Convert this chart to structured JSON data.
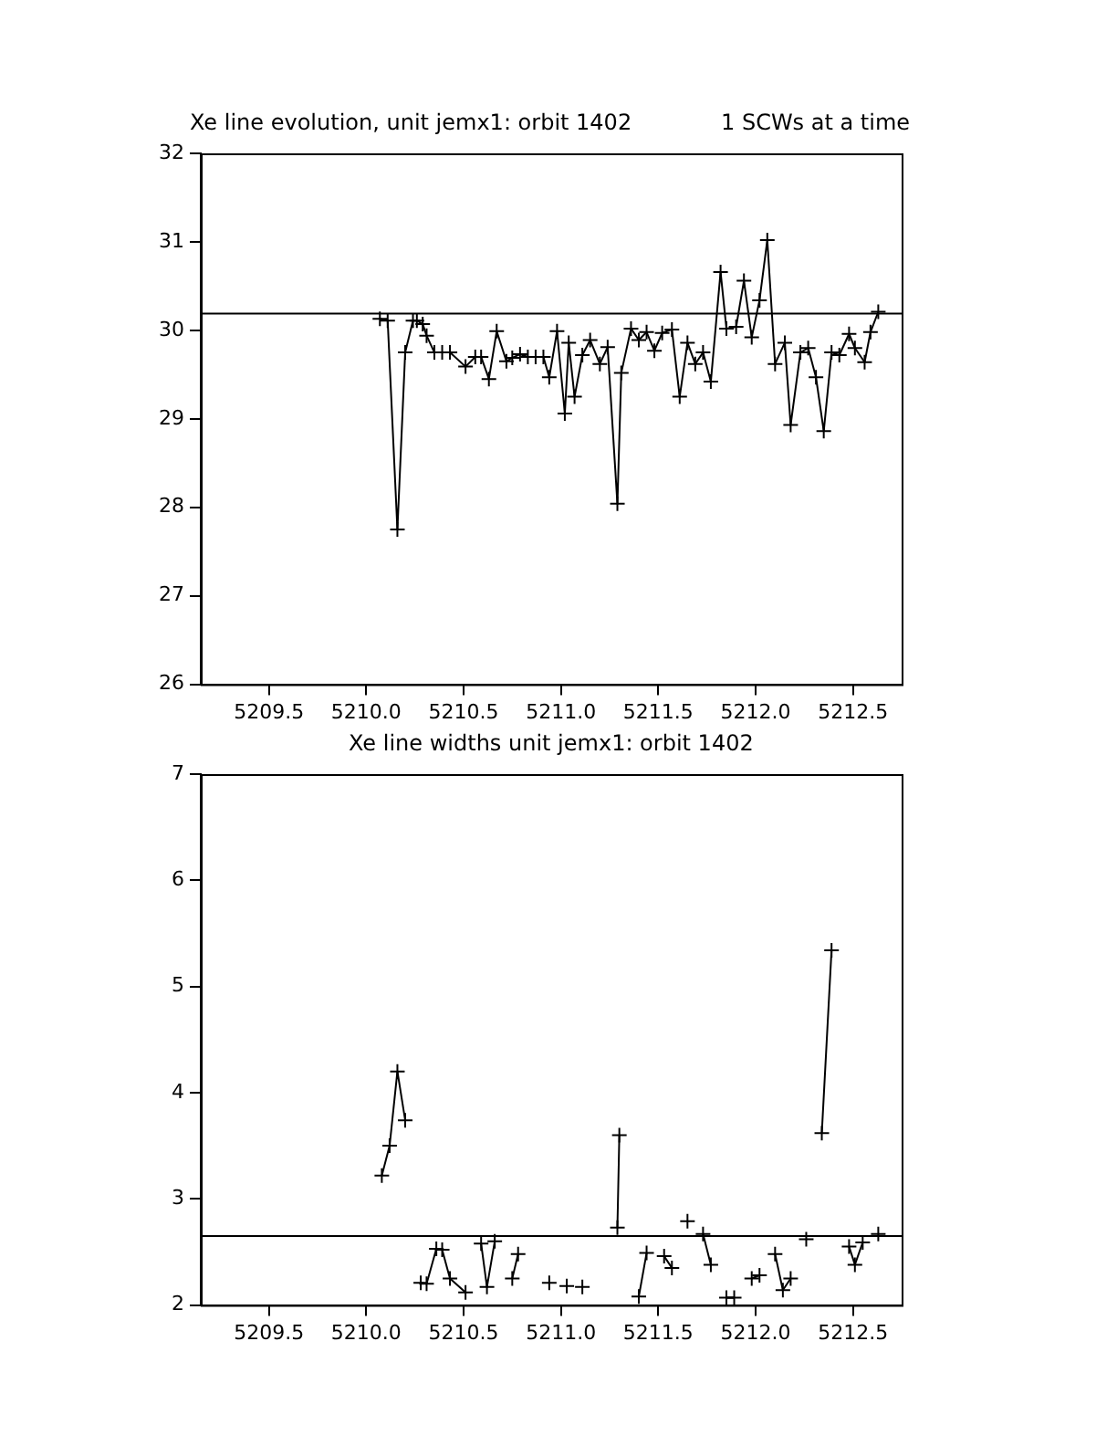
{
  "chart_data": [
    {
      "type": "line",
      "title": "Xe line evolution, unit jemx1: orbit 1402",
      "subtitle": "1 SCWs at a time",
      "marker": "cross",
      "line_style": "solid",
      "grid": false,
      "legend": false,
      "xlim": [
        5209.15,
        5212.75
      ],
      "xticks": [
        {
          "value": 5209.5,
          "label": "5209.5"
        },
        {
          "value": 5210,
          "label": "5210.0"
        },
        {
          "value": 5210.5,
          "label": "5210.5"
        },
        {
          "value": 5211,
          "label": "5211.0"
        },
        {
          "value": 5211.5,
          "label": "5211.5"
        },
        {
          "value": 5212,
          "label": "5212.0"
        },
        {
          "value": 5212.5,
          "label": "5212.5"
        }
      ],
      "ylim": [
        26,
        32
      ],
      "yticks": [
        26,
        27,
        28,
        29,
        30,
        31,
        32
      ],
      "ref_lines": [
        {
          "axis": "y",
          "value": 30.19,
          "color": "#000000"
        }
      ],
      "series": [
        {
          "color": "#000000",
          "x": [
            5210.07,
            5210.11,
            5210.16,
            5210.2,
            5210.24,
            5210.26,
            5210.29,
            5210.31,
            5210.35,
            5210.39,
            5210.43,
            5210.51,
            5210.56,
            5210.59,
            5210.63,
            5210.67,
            5210.72,
            5210.75,
            5210.79,
            5210.83,
            5210.87,
            5210.91,
            5210.94,
            5210.98,
            5211.02,
            5211.04,
            5211.07,
            5211.11,
            5211.15,
            5211.2,
            5211.24,
            5211.29,
            5211.31,
            5211.36,
            5211.4,
            5211.44,
            5211.48,
            5211.52,
            5211.57,
            5211.61,
            5211.65,
            5211.69,
            5211.73,
            5211.77,
            5211.82,
            5211.85,
            5211.9,
            5211.94,
            5211.98,
            5212.02,
            5212.06,
            5212.1,
            5212.15,
            5212.18,
            5212.23,
            5212.27,
            5212.31,
            5212.35,
            5212.39,
            5212.43,
            5212.48,
            5212.51,
            5212.56,
            5212.59,
            5212.63
          ],
          "values": [
            30.13,
            30.11,
            27.75,
            29.75,
            30.11,
            30.11,
            30.07,
            29.94,
            29.75,
            29.75,
            29.75,
            29.59,
            29.7,
            29.7,
            29.45,
            29.99,
            29.65,
            29.69,
            29.73,
            29.7,
            29.7,
            29.7,
            29.47,
            29.99,
            29.06,
            29.86,
            29.25,
            29.72,
            29.89,
            29.62,
            29.81,
            28.04,
            29.52,
            30.02,
            29.89,
            29.98,
            29.77,
            29.97,
            30.01,
            29.25,
            29.86,
            29.62,
            29.75,
            29.42,
            30.66,
            30.02,
            30.04,
            30.56,
            29.92,
            30.34,
            31.02,
            29.62,
            29.86,
            28.93,
            29.75,
            29.8,
            29.47,
            28.86,
            29.75,
            29.72,
            29.96,
            29.8,
            29.64,
            29.98,
            30.21
          ]
        }
      ]
    },
    {
      "type": "line",
      "title": "Xe line widths unit jemx1: orbit 1402",
      "marker": "cross",
      "line_style": "solid",
      "grid": false,
      "legend": false,
      "xlim": [
        5209.15,
        5212.75
      ],
      "xticks": [
        {
          "value": 5209.5,
          "label": "5209.5"
        },
        {
          "value": 5210,
          "label": "5210.0"
        },
        {
          "value": 5210.5,
          "label": "5210.5"
        },
        {
          "value": 5211,
          "label": "5211.0"
        },
        {
          "value": 5211.5,
          "label": "5211.5"
        },
        {
          "value": 5212,
          "label": "5212.0"
        },
        {
          "value": 5212.5,
          "label": "5212.5"
        }
      ],
      "ylim": [
        2,
        7
      ],
      "yticks": [
        2,
        3,
        4,
        5,
        6,
        7
      ],
      "ref_lines": [
        {
          "axis": "y",
          "value": 2.65,
          "color": "#000000"
        }
      ],
      "series": [
        {
          "color": "#000000",
          "x": [
            5210.08,
            5210.12,
            5210.16,
            5210.2,
            5210.24,
            5210.28,
            5210.31,
            5210.36,
            5210.39,
            5210.43,
            5210.51,
            5210.55,
            5210.59,
            5210.62,
            5210.66,
            5210.7,
            5210.75,
            5210.78,
            5210.82,
            5210.94,
            5210.98,
            5211.03,
            5211.07,
            5211.11,
            5211.15,
            5211.29,
            5211.3,
            5211.35,
            5211.4,
            5211.44,
            5211.48,
            5211.53,
            5211.57,
            5211.61,
            5211.65,
            5211.69,
            5211.73,
            5211.77,
            5211.81,
            5211.85,
            5211.89,
            5211.93,
            5211.98,
            5212.02,
            5212.06,
            5212.1,
            5212.14,
            5212.18,
            5212.22,
            5212.26,
            5212.3,
            5212.34,
            5212.39,
            5212.43,
            5212.48,
            5212.51,
            5212.55,
            5212.59,
            5212.63
          ],
          "values": [
            3.22,
            3.5,
            4.2,
            3.74,
            null,
            2.21,
            2.2,
            2.53,
            2.52,
            2.25,
            2.12,
            null,
            2.58,
            2.17,
            2.6,
            null,
            2.25,
            2.48,
            null,
            2.21,
            null,
            2.18,
            null,
            2.17,
            null,
            2.73,
            3.6,
            null,
            2.08,
            2.49,
            null,
            2.46,
            2.35,
            null,
            2.79,
            null,
            2.67,
            2.38,
            null,
            2.07,
            2.07,
            null,
            2.25,
            2.28,
            null,
            2.48,
            2.14,
            2.25,
            null,
            2.62,
            null,
            3.62,
            5.34,
            null,
            2.55,
            2.38,
            2.59,
            null,
            2.67
          ]
        }
      ]
    }
  ]
}
